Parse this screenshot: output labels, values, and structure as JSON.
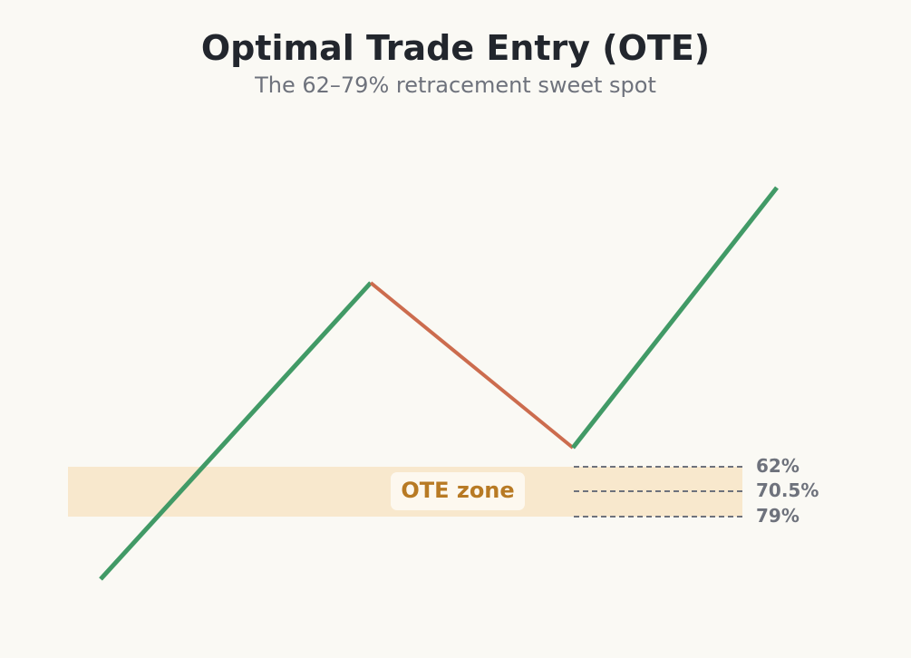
{
  "header": {
    "title": "Optimal Trade Entry (OTE)",
    "subtitle": "The 62–79% retracement sweet spot"
  },
  "zone": {
    "label": "OTE zone",
    "fill_color": "#f8e8cd",
    "label_color": "#b87a24",
    "label_bg": "#fdf8ef"
  },
  "levels": [
    {
      "label": "62%"
    },
    {
      "label": "70.5%"
    },
    {
      "label": "79%"
    }
  ],
  "colors": {
    "impulse": "#419a66",
    "retracement": "#cc6c4e",
    "level_line": "#6e727c",
    "level_text": "#6e727c"
  }
}
